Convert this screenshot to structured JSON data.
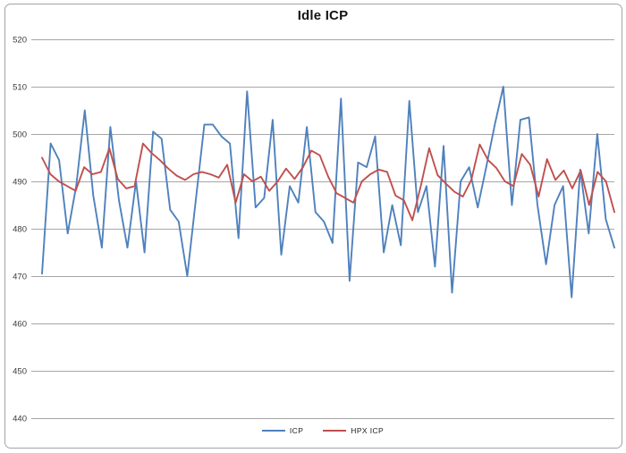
{
  "window": {
    "background_color": "#ffffff",
    "frame_border_color": "#a2a2aa"
  },
  "chart_data": {
    "type": "line",
    "title": "Idle ICP",
    "xlabel": "",
    "ylabel": "",
    "x_axis_labels_visible": false,
    "ylim": [
      440,
      520
    ],
    "y_ticks": [
      520,
      510,
      500,
      490,
      480,
      470,
      460,
      450,
      440
    ],
    "grid": true,
    "gridline_color": "#a6a6a6",
    "legend_position": "bottom",
    "series": [
      {
        "name": "ICP",
        "color": "#4f81bd",
        "values": [
          470.5,
          498,
          494.5,
          479,
          489,
          505,
          487,
          476,
          501.5,
          486,
          476,
          490,
          475,
          500.5,
          499,
          484,
          481.5,
          470,
          486,
          502,
          502,
          499.5,
          498,
          478,
          509,
          484.5,
          486.5,
          503,
          474.5,
          489,
          485.5,
          501.5,
          483.5,
          481.5,
          477,
          507.5,
          469,
          494,
          493,
          499.5,
          475,
          485,
          476.5,
          507,
          483.5,
          489,
          472,
          497.5,
          466.5,
          490,
          493,
          484.5,
          493,
          502,
          510,
          485,
          503,
          503.5,
          485,
          472.5,
          485,
          489,
          465.5,
          492.5,
          479,
          500,
          482,
          476
        ]
      },
      {
        "name": "HPX ICP",
        "color": "#c0504d",
        "values": [
          495,
          491.5,
          490,
          489,
          488,
          493,
          491.5,
          492,
          497,
          490.5,
          488.5,
          489,
          498,
          496,
          494.5,
          492.7,
          491.2,
          490.3,
          491.5,
          492,
          491.5,
          490.8,
          493.5,
          485.5,
          491.5,
          490,
          491,
          488,
          490,
          492.7,
          490.5,
          493,
          496.5,
          495.5,
          491,
          487.5,
          486.5,
          485.5,
          490,
          491.5,
          492.5,
          492,
          487,
          486,
          481.8,
          489,
          497,
          491.3,
          489.5,
          487.8,
          486.8,
          490.3,
          497.8,
          494.5,
          492.8,
          490,
          489,
          495.8,
          493.5,
          486.8,
          494.7,
          490.3,
          492.3,
          488.5,
          492.3,
          485,
          492,
          490,
          483.5
        ]
      }
    ]
  }
}
